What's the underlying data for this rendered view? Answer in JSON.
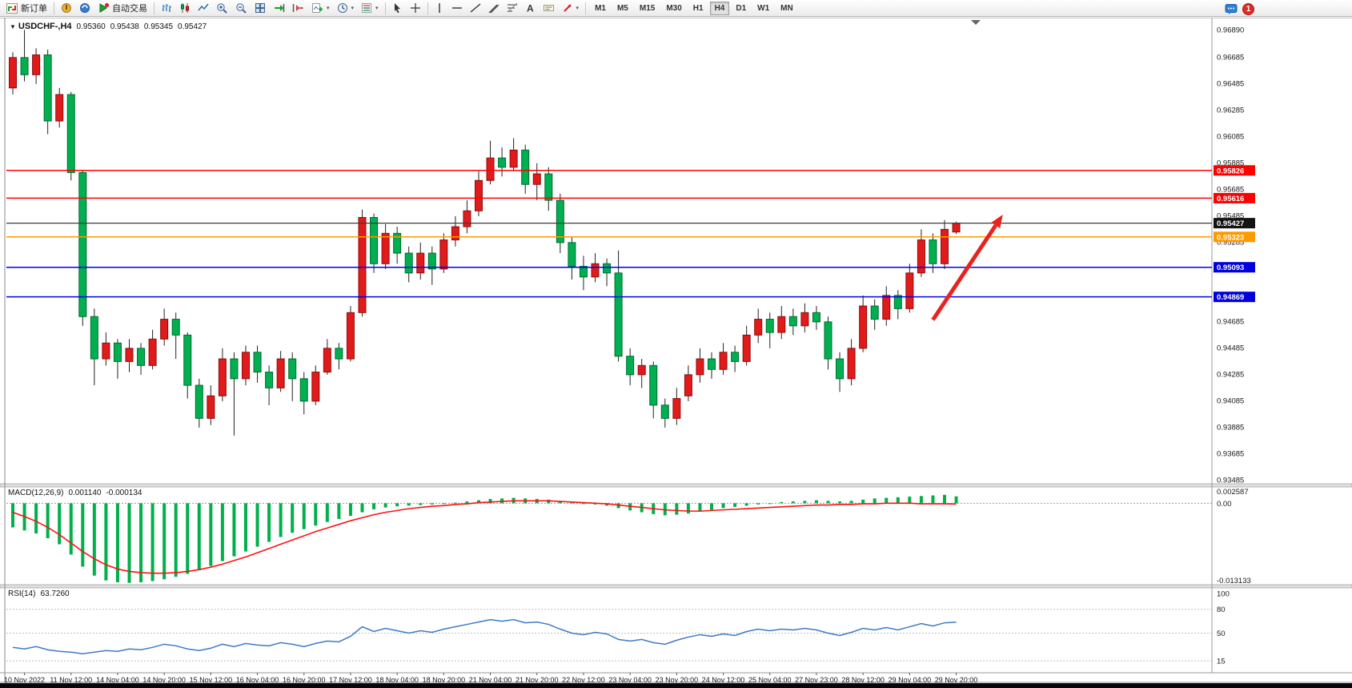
{
  "toolbar": {
    "new_order_label": "新订单",
    "autotrading_label": "自动交易",
    "timeframes": [
      "M1",
      "M5",
      "M15",
      "M30",
      "H1",
      "H4",
      "D1",
      "W1",
      "MN"
    ],
    "active_timeframe": "H4",
    "notification_count": "1",
    "icons": [
      "new-order-icon",
      "tools-icon",
      "community-icon",
      "autotrading-icon",
      "bar-chart-icon",
      "candlestick-chart-icon",
      "line-chart-icon",
      "zoom-in-icon",
      "zoom-out-icon",
      "tile-windows-icon",
      "auto-scroll-icon",
      "chart-shift-icon",
      "indicators-dropdown-icon",
      "periods-dropdown-icon",
      "templates-dropdown-icon",
      "cursor-icon",
      "crosshair-icon",
      "vertical-line-icon",
      "horizontal-line-icon",
      "trendline-icon",
      "equidistant-channel-icon",
      "fibonacci-icon",
      "text-icon",
      "text-label-icon",
      "arrows-dropdown-icon",
      "chat-icon",
      "notification-badge"
    ]
  },
  "chart": {
    "title": "USDCHF-,H4",
    "open": "0.95360",
    "high": "0.95438",
    "low": "0.95345",
    "close": "0.95427",
    "ylim": [
      0.93455,
      0.9697
    ],
    "price_axis_labels": [
      "0.96890",
      "0.96685",
      "0.96485",
      "0.96285",
      "0.96085",
      "0.95885",
      "0.95685",
      "0.95485",
      "0.95285",
      "0.95085",
      "0.94885",
      "0.94685",
      "0.94485",
      "0.94285",
      "0.94085",
      "0.93885",
      "0.93685",
      "0.93485"
    ],
    "hlines": [
      {
        "name": "resistance-line-1",
        "price": "0.95826",
        "value": 0.95826,
        "color": "#ff0000",
        "tag": "#ff0000"
      },
      {
        "name": "resistance-line-2",
        "price": "0.95616",
        "value": 0.95616,
        "color": "#ff0000",
        "tag": "#ff0000"
      },
      {
        "name": "current-price-line",
        "price": "0.95427",
        "value": 0.95427,
        "color": "#3c3c3c",
        "tag": "#141414"
      },
      {
        "name": "pivot-line-orange",
        "price": "0.95323",
        "value": 0.95323,
        "color": "#ff9900",
        "tag": "#ff9900"
      },
      {
        "name": "support-line-1",
        "price": "0.95093",
        "value": 0.95093,
        "color": "#0000ee",
        "tag": "#0000dd"
      },
      {
        "name": "support-line-2",
        "price": "0.94869",
        "value": 0.94869,
        "color": "#0000ee",
        "tag": "#0000dd"
      }
    ],
    "colors": {
      "up": "#e11a1a",
      "up_border": "#8f0d0d",
      "down": "#00b050",
      "down_border": "#006b30",
      "wick": "#222222"
    },
    "arrow": {
      "from_bar": 79,
      "from_price": 0.94695,
      "to_bar": 85,
      "to_price": 0.95491,
      "color": "#e8231f"
    },
    "shift_marker_x": 1219,
    "candles": [
      [
        0.9645,
        0.9672,
        0.964,
        0.9668
      ],
      [
        0.9668,
        0.9689,
        0.965,
        0.9655
      ],
      [
        0.9655,
        0.9675,
        0.9648,
        0.967
      ],
      [
        0.967,
        0.9674,
        0.961,
        0.962
      ],
      [
        0.962,
        0.9645,
        0.9615,
        0.964
      ],
      [
        0.964,
        0.9642,
        0.9575,
        0.9581
      ],
      [
        0.9581,
        0.9583,
        0.9465,
        0.9472
      ],
      [
        0.9472,
        0.9478,
        0.942,
        0.944
      ],
      [
        0.944,
        0.946,
        0.9435,
        0.9452
      ],
      [
        0.9452,
        0.9455,
        0.9425,
        0.9438
      ],
      [
        0.9438,
        0.9455,
        0.943,
        0.9448
      ],
      [
        0.9448,
        0.9452,
        0.9428,
        0.9435
      ],
      [
        0.9435,
        0.9462,
        0.9432,
        0.9455
      ],
      [
        0.9455,
        0.9478,
        0.945,
        0.947
      ],
      [
        0.947,
        0.9475,
        0.944,
        0.9458
      ],
      [
        0.9458,
        0.946,
        0.941,
        0.942
      ],
      [
        0.942,
        0.9425,
        0.9388,
        0.9395
      ],
      [
        0.9395,
        0.942,
        0.939,
        0.9412
      ],
      [
        0.9412,
        0.9448,
        0.9408,
        0.944
      ],
      [
        0.944,
        0.9445,
        0.9382,
        0.9425
      ],
      [
        0.9425,
        0.945,
        0.942,
        0.9445
      ],
      [
        0.9445,
        0.945,
        0.9422,
        0.943
      ],
      [
        0.943,
        0.9435,
        0.9405,
        0.9418
      ],
      [
        0.9418,
        0.9446,
        0.9415,
        0.944
      ],
      [
        0.944,
        0.9445,
        0.9408,
        0.9425
      ],
      [
        0.9425,
        0.943,
        0.9398,
        0.9408
      ],
      [
        0.9408,
        0.9435,
        0.9405,
        0.943
      ],
      [
        0.943,
        0.9455,
        0.9428,
        0.9448
      ],
      [
        0.9448,
        0.9452,
        0.9432,
        0.944
      ],
      [
        0.944,
        0.948,
        0.9438,
        0.9475
      ],
      [
        0.9475,
        0.9553,
        0.9472,
        0.9547
      ],
      [
        0.9547,
        0.955,
        0.9505,
        0.9512
      ],
      [
        0.9512,
        0.9542,
        0.9508,
        0.9535
      ],
      [
        0.9535,
        0.954,
        0.9512,
        0.952
      ],
      [
        0.952,
        0.9525,
        0.9498,
        0.9505
      ],
      [
        0.9505,
        0.9528,
        0.95,
        0.952
      ],
      [
        0.952,
        0.9525,
        0.9496,
        0.9508
      ],
      [
        0.9508,
        0.9535,
        0.9505,
        0.953
      ],
      [
        0.953,
        0.9548,
        0.9525,
        0.954
      ],
      [
        0.954,
        0.956,
        0.9535,
        0.9552
      ],
      [
        0.9552,
        0.9582,
        0.9548,
        0.9575
      ],
      [
        0.9575,
        0.9605,
        0.9572,
        0.9592
      ],
      [
        0.9592,
        0.96,
        0.9578,
        0.9585
      ],
      [
        0.9585,
        0.9607,
        0.9582,
        0.9598
      ],
      [
        0.9598,
        0.9602,
        0.9565,
        0.9572
      ],
      [
        0.9572,
        0.9588,
        0.956,
        0.958
      ],
      [
        0.958,
        0.9585,
        0.9552,
        0.956
      ],
      [
        0.956,
        0.9565,
        0.952,
        0.9528
      ],
      [
        0.9528,
        0.9532,
        0.95,
        0.951
      ],
      [
        0.951,
        0.9518,
        0.9492,
        0.9502
      ],
      [
        0.9502,
        0.952,
        0.9498,
        0.9512
      ],
      [
        0.9512,
        0.9516,
        0.9495,
        0.9505
      ],
      [
        0.9505,
        0.9522,
        0.9438,
        0.9442
      ],
      [
        0.9442,
        0.9448,
        0.942,
        0.9428
      ],
      [
        0.9428,
        0.944,
        0.9418,
        0.9435
      ],
      [
        0.9435,
        0.9438,
        0.9395,
        0.9405
      ],
      [
        0.9405,
        0.941,
        0.9388,
        0.9395
      ],
      [
        0.9395,
        0.9418,
        0.939,
        0.941
      ],
      [
        0.9412,
        0.9435,
        0.9408,
        0.9428
      ],
      [
        0.9428,
        0.9448,
        0.9422,
        0.944
      ],
      [
        0.944,
        0.9445,
        0.9425,
        0.9432
      ],
      [
        0.9432,
        0.9452,
        0.9428,
        0.9445
      ],
      [
        0.9445,
        0.945,
        0.943,
        0.9438
      ],
      [
        0.9438,
        0.9465,
        0.9435,
        0.9458
      ],
      [
        0.9458,
        0.9478,
        0.9452,
        0.947
      ],
      [
        0.947,
        0.9475,
        0.9448,
        0.946
      ],
      [
        0.946,
        0.948,
        0.9455,
        0.9472
      ],
      [
        0.9472,
        0.9478,
        0.9458,
        0.9465
      ],
      [
        0.9465,
        0.9482,
        0.946,
        0.9475
      ],
      [
        0.9475,
        0.948,
        0.9462,
        0.9468
      ],
      [
        0.9468,
        0.9472,
        0.9432,
        0.944
      ],
      [
        0.944,
        0.9445,
        0.9415,
        0.9425
      ],
      [
        0.9425,
        0.9455,
        0.942,
        0.9448
      ],
      [
        0.9448,
        0.9488,
        0.9445,
        0.948
      ],
      [
        0.948,
        0.9485,
        0.9462,
        0.947
      ],
      [
        0.947,
        0.9495,
        0.9465,
        0.9488
      ],
      [
        0.9488,
        0.9492,
        0.947,
        0.9478
      ],
      [
        0.9478,
        0.9512,
        0.9475,
        0.9505
      ],
      [
        0.9505,
        0.9538,
        0.9502,
        0.953
      ],
      [
        0.953,
        0.9535,
        0.9505,
        0.9512
      ],
      [
        0.9512,
        0.9545,
        0.9508,
        0.9538
      ],
      [
        0.9536,
        0.95438,
        0.95345,
        0.95427
      ]
    ]
  },
  "macd": {
    "name": "MACD(12,26,9)",
    "value_main": "0.001140",
    "value_signal": "-0.000134",
    "axis_labels": [
      "0.002587",
      "0.00",
      "-0.013133"
    ],
    "ylim": [
      -0.0135,
      0.0027
    ],
    "colors": {
      "histogram": "#00b04a",
      "signal": "#ff1010"
    },
    "histogram": [
      -0.004,
      -0.0045,
      -0.005,
      -0.0058,
      -0.0068,
      -0.0085,
      -0.0105,
      -0.012,
      -0.0128,
      -0.0131,
      -0.0132,
      -0.0131,
      -0.0129,
      -0.0126,
      -0.0122,
      -0.0117,
      -0.0111,
      -0.0104,
      -0.0096,
      -0.0088,
      -0.008,
      -0.0072,
      -0.0064,
      -0.0056,
      -0.0049,
      -0.0043,
      -0.0037,
      -0.0031,
      -0.0026,
      -0.0021,
      -0.0015,
      -0.001,
      -0.0007,
      -0.0005,
      -0.0004,
      -0.0003,
      -0.0002,
      -0.0001,
      0.0001,
      0.0003,
      0.0005,
      0.0007,
      0.0008,
      0.0009,
      0.0008,
      0.0007,
      0.0006,
      0.0004,
      0.0002,
      0.0,
      -0.0002,
      -0.0004,
      -0.0008,
      -0.0012,
      -0.0015,
      -0.0018,
      -0.002,
      -0.0019,
      -0.0017,
      -0.0014,
      -0.0011,
      -0.0008,
      -0.0006,
      -0.0004,
      -0.0002,
      0.0,
      0.0002,
      0.0003,
      0.0004,
      0.0005,
      0.0004,
      0.0003,
      0.0004,
      0.0006,
      0.0008,
      0.0009,
      0.001,
      0.0011,
      0.0012,
      0.0013,
      0.0014,
      0.00114
    ],
    "signal": [
      -0.0015,
      -0.0022,
      -0.003,
      -0.004,
      -0.0052,
      -0.0066,
      -0.008,
      -0.0092,
      -0.0102,
      -0.0109,
      -0.0113,
      -0.0115,
      -0.0116,
      -0.0116,
      -0.0115,
      -0.0113,
      -0.011,
      -0.0106,
      -0.0101,
      -0.0095,
      -0.0089,
      -0.0082,
      -0.0075,
      -0.0068,
      -0.0061,
      -0.0054,
      -0.0047,
      -0.0041,
      -0.0035,
      -0.0029,
      -0.0024,
      -0.0019,
      -0.0015,
      -0.0012,
      -0.0009,
      -0.0007,
      -0.0005,
      -0.0004,
      -0.0002,
      -0.0001,
      0.0001,
      0.0002,
      0.0003,
      0.0004,
      0.0004,
      0.0004,
      0.0004,
      0.0003,
      0.0002,
      0.0001,
      0.0,
      -0.0001,
      -0.0003,
      -0.0005,
      -0.0007,
      -0.0009,
      -0.0011,
      -0.0012,
      -0.0013,
      -0.0013,
      -0.0012,
      -0.0011,
      -0.001,
      -0.0009,
      -0.0008,
      -0.0007,
      -0.0006,
      -0.0005,
      -0.0004,
      -0.0003,
      -0.0003,
      -0.0002,
      -0.0002,
      -0.0001,
      -0.0001,
      0.0,
      0.0,
      0.0,
      -0.0001,
      -0.0001,
      -0.0001,
      -0.000134
    ]
  },
  "rsi": {
    "name": "RSI(14)",
    "value": "63.7260",
    "axis_labels": [
      "100",
      "80",
      "50",
      "15"
    ],
    "levels": [
      80,
      50,
      15
    ],
    "ylim": [
      0,
      107
    ],
    "color": "#3e7bc4",
    "values": [
      32,
      30,
      33,
      29,
      27,
      26,
      24,
      26,
      28,
      27,
      30,
      29,
      32,
      36,
      34,
      30,
      28,
      31,
      36,
      33,
      37,
      35,
      34,
      38,
      36,
      33,
      37,
      40,
      39,
      46,
      58,
      52,
      56,
      53,
      50,
      53,
      51,
      55,
      58,
      61,
      64,
      67,
      65,
      67,
      63,
      64,
      61,
      55,
      50,
      48,
      51,
      49,
      42,
      40,
      42,
      38,
      36,
      41,
      45,
      48,
      46,
      49,
      47,
      52,
      55,
      53,
      55,
      54,
      56,
      54,
      50,
      47,
      51,
      56,
      54,
      57,
      54,
      58,
      62,
      59,
      63,
      63.73
    ]
  },
  "time_axis": {
    "labels": [
      "10 Nov 2022",
      "11 Nov 12:00",
      "14 Nov 04:00",
      "14 Nov 20:00",
      "15 Nov 12:00",
      "16 Nov 04:00",
      "16 Nov 20:00",
      "17 Nov 12:00",
      "18 Nov 04:00",
      "18 Nov 20:00",
      "21 Nov 04:00",
      "21 Nov 20:00",
      "22 Nov 12:00",
      "23 Nov 04:00",
      "23 Nov 20:00",
      "24 Nov 12:00",
      "25 Nov 04:00",
      "27 Nov 23:00",
      "28 Nov 12:00",
      "29 Nov 04:00",
      "29 Nov 20:00"
    ]
  }
}
